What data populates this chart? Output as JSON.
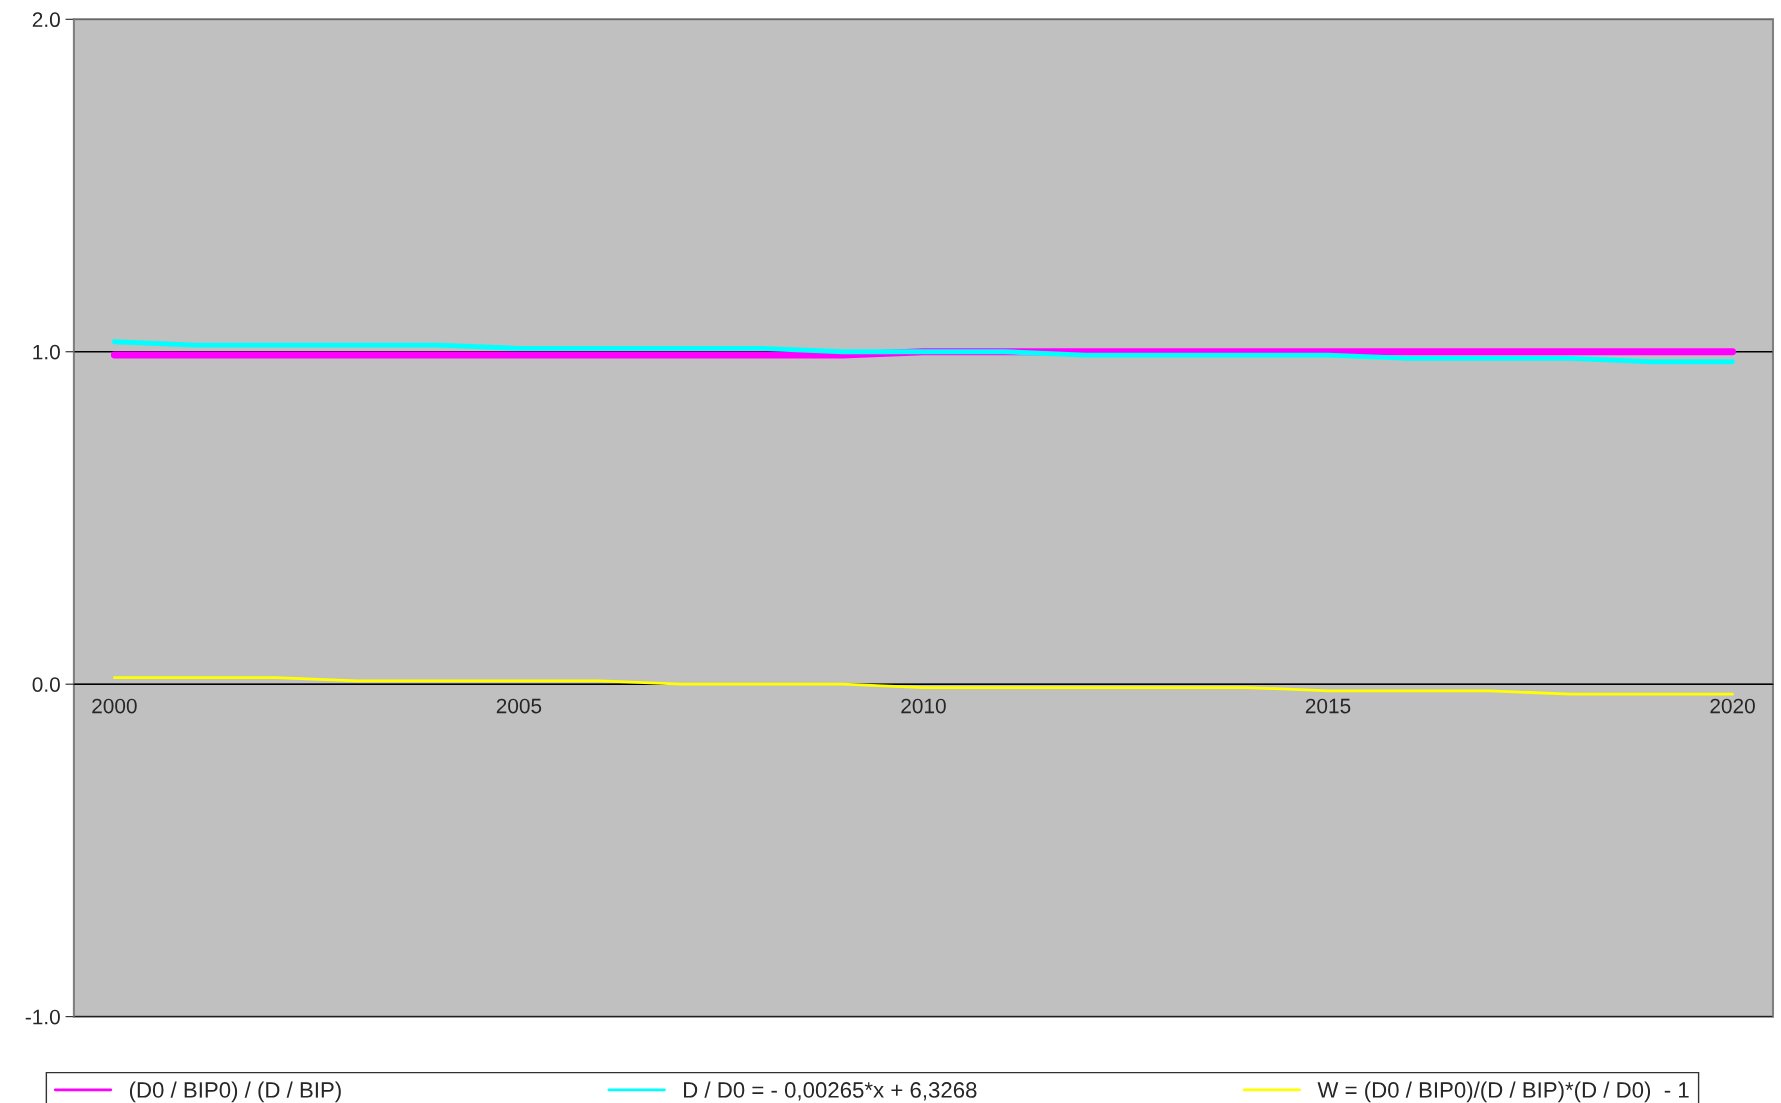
{
  "chart_data": {
    "type": "line",
    "categories": [
      "2000",
      null,
      null,
      null,
      null,
      "2005",
      null,
      null,
      null,
      null,
      "2010",
      null,
      null,
      null,
      null,
      "2015",
      null,
      null,
      null,
      null,
      "2020"
    ],
    "series": [
      {
        "name": "(D0 / BIP0) / (D / BIP)",
        "color": "#ff00ff",
        "values": [
          0.99,
          0.99,
          0.99,
          0.99,
          0.99,
          0.99,
          0.99,
          0.99,
          0.99,
          0.99,
          1.0,
          1.0,
          1.0,
          1.0,
          1.0,
          1.0,
          1.0,
          1.0,
          1.0,
          1.0,
          1.0
        ]
      },
      {
        "name": "D / D0 = - 0,00265*x + 6,3268",
        "color": "#00ffff",
        "values": [
          1.03,
          1.02,
          1.02,
          1.02,
          1.02,
          1.01,
          1.01,
          1.01,
          1.01,
          1.0,
          1.0,
          1.0,
          0.99,
          0.99,
          0.99,
          0.99,
          0.98,
          0.98,
          0.98,
          0.97,
          0.97
        ]
      },
      {
        "name": "W = (D0 / BIP0)/(D / BIP)*(D / D0)  - 1",
        "color": "#ffff00",
        "values": [
          0.02,
          0.02,
          0.02,
          0.01,
          0.01,
          0.01,
          0.01,
          0.0,
          0.0,
          0.0,
          -0.01,
          -0.01,
          -0.01,
          -0.01,
          -0.01,
          -0.02,
          -0.02,
          -0.02,
          -0.03,
          -0.03,
          -0.03
        ]
      }
    ],
    "ylim": [
      -1,
      2
    ],
    "yticks": [
      {
        "value": -1,
        "label": "-1.0"
      },
      {
        "value": 0,
        "label": "0.0"
      },
      {
        "value": 1,
        "label": "1.0"
      },
      {
        "value": 2,
        "label": "2.0"
      }
    ],
    "grid": "y",
    "legend": "bottom",
    "marker": "none",
    "line_style": "solid"
  }
}
